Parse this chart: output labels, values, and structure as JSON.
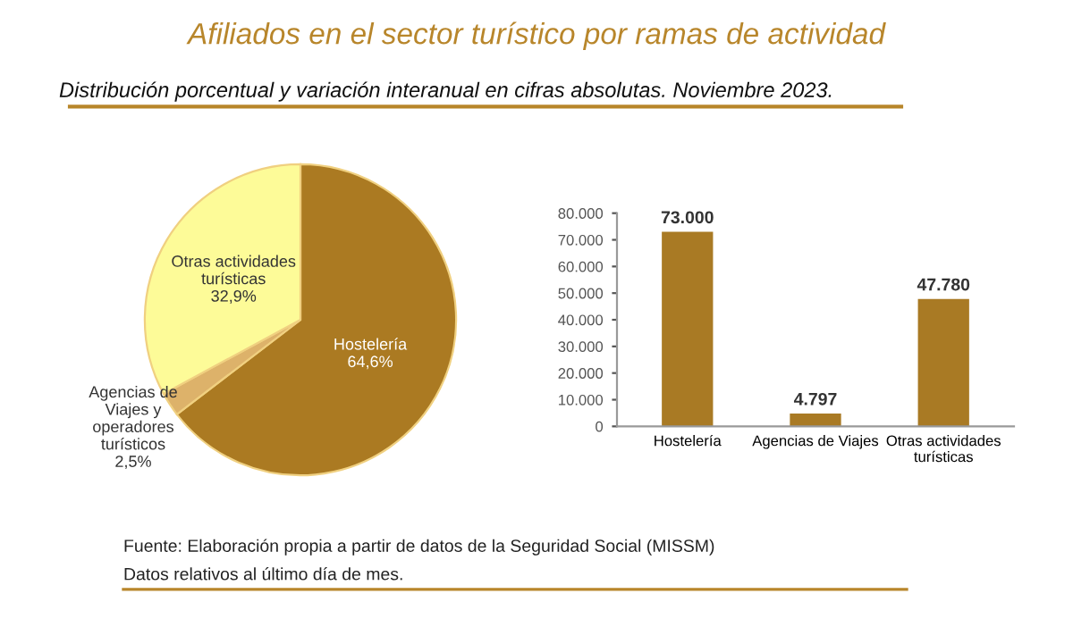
{
  "chart_data": [
    {
      "type": "pie",
      "title": "Afiliados en el sector turístico por ramas de actividad",
      "subtitle": "Distribución porcentual y variación interanual en cifras absolutas. Noviembre 2023.",
      "annotations": [
        "Fuente: Elaboración propia a partir de datos de la Seguridad Social (MISSM)",
        "Datos relativos al último día de mes."
      ],
      "categories": [
        "Hostelería",
        "Agencias de\nViajes y\noperadores\nturísticos",
        "Otras actividades\nturísticas"
      ],
      "values": [
        64.6,
        2.5,
        32.9
      ],
      "value_labels": [
        "64,6%",
        "2,5%",
        "32,9%"
      ],
      "colors": [
        "#ab7a22",
        "#ddb26a",
        "#fdfb98"
      ]
    },
    {
      "type": "bar",
      "categories": [
        "Hostelería",
        "Agencias de Viajes",
        "Otras actividades\nturísticas"
      ],
      "values": [
        73000,
        4797,
        47780
      ],
      "color": "#a97a24",
      "value_labels": [
        "73.000",
        "4.797",
        "47.780"
      ],
      "ylim": [
        0,
        80000
      ],
      "yticks": [
        {
          "value": 0,
          "label": "0"
        },
        {
          "value": 10000,
          "label": "10.000"
        },
        {
          "value": 20000,
          "label": "20.000"
        },
        {
          "value": 30000,
          "label": "30.000"
        },
        {
          "value": 40000,
          "label": "40.000"
        },
        {
          "value": 50000,
          "label": "50.000"
        },
        {
          "value": 60000,
          "label": "60.000"
        },
        {
          "value": 70000,
          "label": "70.000"
        },
        {
          "value": 80000,
          "label": "80.000"
        }
      ],
      "grid": false
    }
  ]
}
